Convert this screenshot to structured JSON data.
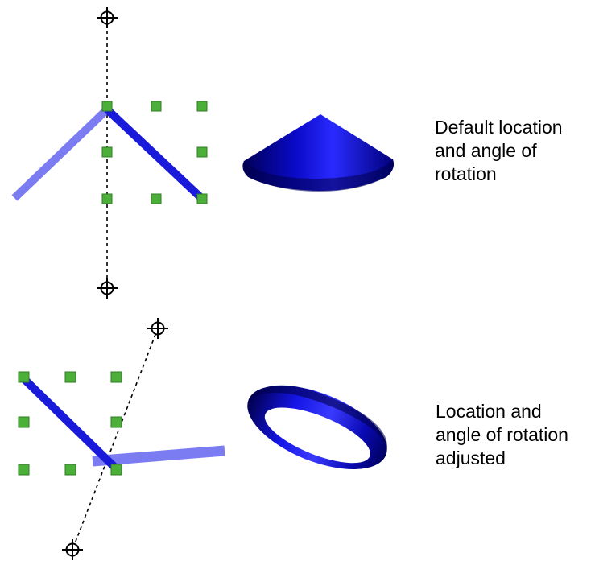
{
  "panels": [
    {
      "id": "default",
      "caption_lines": [
        "Default location",
        "and angle of",
        "rotation"
      ]
    },
    {
      "id": "adjusted",
      "caption_lines": [
        "Location and",
        "angle of rotation",
        "adjusted"
      ]
    }
  ],
  "colors": {
    "profile_line": "#1a1adb",
    "mirror_line": "#7b7bf2",
    "grid_handle_fill": "#4caf3a",
    "grid_handle_stroke": "#2e7d22",
    "axis_line": "#000000",
    "solid_dark": "#000066",
    "solid_light": "#2a2aff"
  },
  "icons": {
    "axis_endpoint": "crosshair-circle-icon",
    "grid_handle": "square-handle-icon"
  }
}
